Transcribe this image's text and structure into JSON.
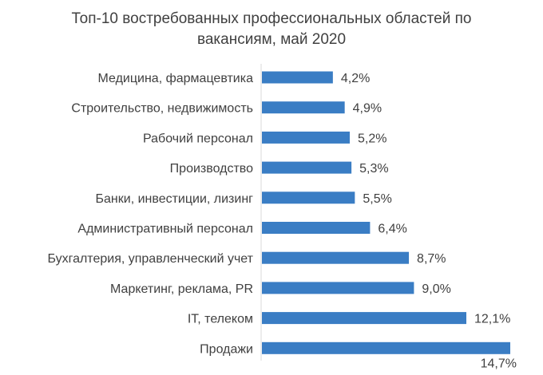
{
  "chart_data": {
    "type": "bar",
    "orientation": "horizontal",
    "title": "Топ-10 востребованных профессиональных областей по вакансиям, май 2020",
    "title_lines": [
      "Топ-10 востребованных профессиональных областей по",
      "вакансиям, май 2020"
    ],
    "categories": [
      "Медицина, фармацевтика",
      "Строительство, недвижимость",
      "Рабочий персонал",
      "Производство",
      "Банки, инвестиции, лизинг",
      "Административный персонал",
      "Бухгалтерия, управленческий учет",
      "Маркетинг, реклама, PR",
      "IT, телеком",
      "Продажи"
    ],
    "values": [
      4.2,
      4.9,
      5.2,
      5.3,
      5.5,
      6.4,
      8.7,
      9.0,
      12.1,
      14.7
    ],
    "value_labels": [
      "4,2%",
      "4,9%",
      "5,2%",
      "5,3%",
      "5,5%",
      "6,4%",
      "8,7%",
      "9,0%",
      "12,1%",
      "14,7%"
    ],
    "unit": "%",
    "xlim": [
      0,
      14.7
    ],
    "grid": false,
    "legend": "none",
    "bar_color": "#3a7dc4",
    "text_color": "#404040"
  }
}
